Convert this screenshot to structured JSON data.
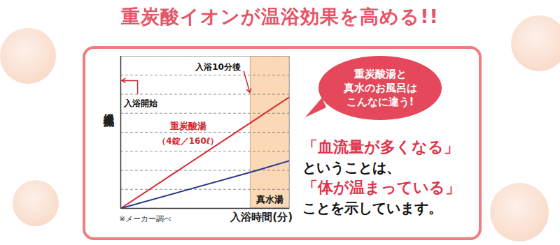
{
  "chart_data": {
    "type": "line",
    "title": "重炭酸イオンが温浴効果を高める!!",
    "x_label": "入浴時間(分)",
    "y_label": "組織血流量",
    "x": [
      0,
      10,
      13
    ],
    "xlim": [
      0,
      13
    ],
    "ylim": [
      0,
      8
    ],
    "yticks": [
      1,
      2,
      3,
      4,
      5,
      6,
      7,
      8
    ],
    "grid": true,
    "tick_labels": false,
    "series": [
      {
        "name": "重炭酸湯（4錠／160ℓ）",
        "color": "#d7282f",
        "values": [
          0,
          4.5,
          5.85
        ]
      },
      {
        "name": "真水湯",
        "color": "#27398a",
        "values": [
          0,
          1.9,
          2.5
        ]
      }
    ],
    "shaded_region": [
      10,
      13
    ],
    "annotations": [
      {
        "text": "入浴開始",
        "x": 0
      },
      {
        "text": "入浴10分後",
        "x": 10
      }
    ],
    "source": "※メーカー調べ",
    "bubble": [
      "重炭酸湯と",
      "真水のお風呂は",
      "こんなに違う!"
    ],
    "message": [
      {
        "text": "「血流量が多くなる」",
        "emphasis": true
      },
      {
        "text": "ということは、",
        "emphasis": false
      },
      {
        "text": "「体が温まっている」",
        "emphasis": true
      },
      {
        "text": "ことを示しています。",
        "emphasis": false
      }
    ]
  }
}
